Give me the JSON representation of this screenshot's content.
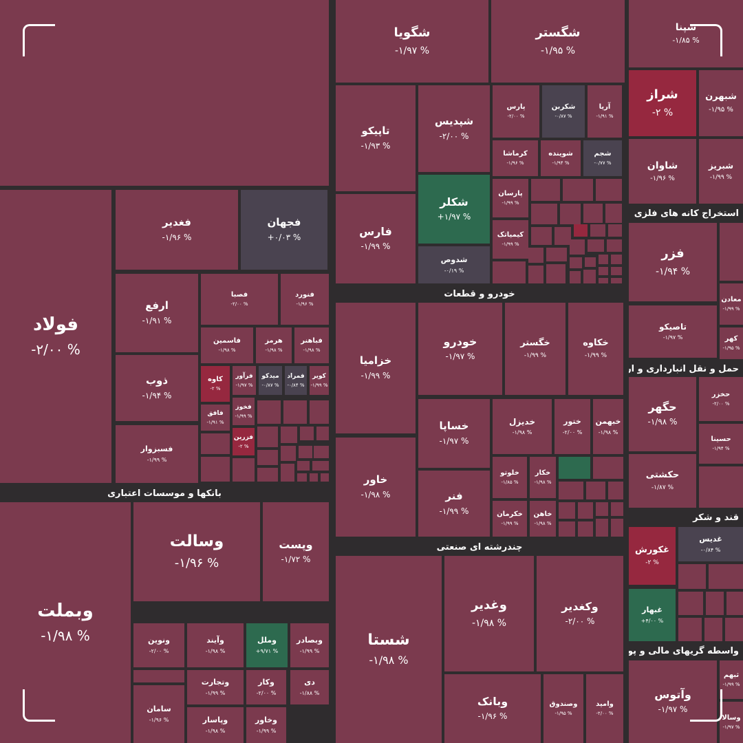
{
  "colors": {
    "background": "#2f2c2e",
    "down": "#7b3a4e",
    "down_strong": "#96283f",
    "neutral": "#4a4350",
    "up": "#2d6a4f"
  },
  "chart_data": {
    "type": "treemap",
    "value_format": "percent change",
    "groups": [
      {
        "name": "بانکها و موسسات اعتباری"
      },
      {
        "name": "خودرو و قطعات"
      },
      {
        "name": "چندرشته ای صنعتی"
      },
      {
        "name": "استخراج کانه های فلزی"
      },
      {
        "name": "حمل و نقل انبارداری و ارتباطات"
      },
      {
        "name": "قند و شکر"
      },
      {
        "name": "واسطه گریهای مالی و پولی"
      }
    ],
    "tiles": [
      {
        "name": "فولاد",
        "label": "-۲/۰۰ %",
        "value": -2.0
      },
      {
        "name": "فغدیر",
        "label": "-۱/۹۶ %",
        "value": -1.96
      },
      {
        "name": "فجهان",
        "label": "+۰/۰۳ %",
        "value": 0.03
      },
      {
        "name": "ارفع",
        "label": "-۱/۹۱ %",
        "value": -1.91
      },
      {
        "name": "ذوب",
        "label": "-۱/۹۴ %",
        "value": -1.94
      },
      {
        "name": "فسبزوار",
        "label": "-۱/۹۹ %",
        "value": -1.99
      },
      {
        "name": "فصبا",
        "label": "-۲/۰۰ %",
        "value": -2.0
      },
      {
        "name": "فنورد",
        "label": "-۱/۹۶ %",
        "value": -1.96
      },
      {
        "name": "فاسمین",
        "label": "-۱/۹۸ %",
        "value": -1.98
      },
      {
        "name": "هرمز",
        "label": "-۱/۹۸ %",
        "value": -1.98
      },
      {
        "name": "فباهنر",
        "label": "-۱/۹۸ %",
        "value": -1.98
      },
      {
        "name": "کاوه",
        "label": "-۲ %",
        "value": -2.0
      },
      {
        "name": "فرآور",
        "label": "-۱/۹۷ %",
        "value": -1.97
      },
      {
        "name": "میدکو",
        "label": "-۰/۸۷ %",
        "value": -0.87
      },
      {
        "name": "فمراد",
        "label": "-۰/۸۴ %",
        "value": -0.84
      },
      {
        "name": "کویر",
        "label": "-۱/۹۹ %",
        "value": -1.99
      },
      {
        "name": "فافق",
        "label": "-۱/۹۱ %",
        "value": -1.91
      },
      {
        "name": "فخوز",
        "label": "-۱/۹۹ %",
        "value": -1.99
      },
      {
        "name": "فزرین",
        "label": "-۲ %",
        "value": -2.0
      },
      {
        "name": "وبملت",
        "label": "-۱/۹۸ %",
        "value": -1.98
      },
      {
        "name": "وسالت",
        "label": "-۱/۹۶ %",
        "value": -1.96
      },
      {
        "name": "وپست",
        "label": "-۱/۷۲ %",
        "value": -1.72
      },
      {
        "name": "ونوین",
        "label": "-۲/۰۰ %",
        "value": -2.0
      },
      {
        "name": "وآیند",
        "label": "-۱/۹۸ %",
        "value": -1.98
      },
      {
        "name": "وملل",
        "label": "+۹/۷۱ %",
        "value": 9.71
      },
      {
        "name": "وبصادر",
        "label": "-۱/۹۹ %",
        "value": -1.99
      },
      {
        "name": "وتجارت",
        "label": "-۱/۹۹ %",
        "value": -1.99
      },
      {
        "name": "وکار",
        "label": "-۲/۰۰ %",
        "value": -2.0
      },
      {
        "name": "دی",
        "label": "-۱/۸۸ %",
        "value": -1.88
      },
      {
        "name": "سامان",
        "label": "-۱/۹۶ %",
        "value": -1.96
      },
      {
        "name": "وپاسار",
        "label": "-۱/۹۸ %",
        "value": -1.98
      },
      {
        "name": "وخاور",
        "label": "-۱/۹۹ %",
        "value": -1.99
      },
      {
        "name": "شگویا",
        "label": "-۱/۹۷ %",
        "value": -1.97
      },
      {
        "name": "شگستر",
        "label": "-۱/۹۵ %",
        "value": -1.95
      },
      {
        "name": "شپنا",
        "label": "-۱/۸۵ %",
        "value": -1.85
      },
      {
        "name": "تاپیکو",
        "label": "-۱/۹۳ %",
        "value": -1.93
      },
      {
        "name": "شپدیس",
        "label": "-۲/۰۰ %",
        "value": -2.0
      },
      {
        "name": "پارس",
        "label": "-۲/۰۰ %",
        "value": -2.0
      },
      {
        "name": "شکربن",
        "label": "-۰/۸۷ %",
        "value": -0.87
      },
      {
        "name": "آریا",
        "label": "-۱/۹۱ %",
        "value": -1.91
      },
      {
        "name": "کرماشا",
        "label": "-۱/۹۶ %",
        "value": -1.96
      },
      {
        "name": "شوینده",
        "label": "-۱/۹۴ %",
        "value": -1.94
      },
      {
        "name": "شجم",
        "label": "-۰/۷۷ %",
        "value": -0.77
      },
      {
        "name": "فارس",
        "label": "-۱/۹۹ %",
        "value": -1.99
      },
      {
        "name": "شکلر",
        "label": "+۱/۹۷ %",
        "value": 1.97
      },
      {
        "name": "پارسان",
        "label": "-۱/۹۹ %",
        "value": -1.99
      },
      {
        "name": "کیمیاتک",
        "label": "-۱/۹۹ %",
        "value": -1.99
      },
      {
        "name": "شدوص",
        "label": "-۰/۱۹ %",
        "value": -0.19
      },
      {
        "name": "شراز",
        "label": "-۲ %",
        "value": -2.0
      },
      {
        "name": "شبهرن",
        "label": "-۱/۹۵ %",
        "value": -1.95
      },
      {
        "name": "شاوان",
        "label": "-۱/۹۶ %",
        "value": -1.96
      },
      {
        "name": "شبریز",
        "label": "-۱/۹۹ %",
        "value": -1.99
      },
      {
        "name": "خودرو",
        "label": "-۱/۹۷ %",
        "value": -1.97
      },
      {
        "name": "خگستر",
        "label": "-۱/۹۹ %",
        "value": -1.99
      },
      {
        "name": "خکاوه",
        "label": "-۱/۹۹ %",
        "value": -1.99
      },
      {
        "name": "خزامیا",
        "label": "-۱/۹۹ %",
        "value": -1.99
      },
      {
        "name": "خساپا",
        "label": "-۱/۹۷ %",
        "value": -1.97
      },
      {
        "name": "خدیزل",
        "label": "-۱/۹۸ %",
        "value": -1.98
      },
      {
        "name": "ختور",
        "label": "-۲/۰۰ %",
        "value": -2.0
      },
      {
        "name": "خبهمن",
        "label": "-۱/۹۸ %",
        "value": -1.98
      },
      {
        "name": "خاور",
        "label": "-۱/۹۸ %",
        "value": -1.98
      },
      {
        "name": "خلوتو",
        "label": "-۱/۸۵ %",
        "value": -1.85
      },
      {
        "name": "خکار",
        "label": "-۱/۹۸ %",
        "value": -1.98
      },
      {
        "name": "فنر",
        "label": "-۱/۹۹ %",
        "value": -1.99
      },
      {
        "name": "خکرمان",
        "label": "-۱/۹۹ %",
        "value": -1.99
      },
      {
        "name": "خاهن",
        "label": "-۱/۹۸ %",
        "value": -1.98
      },
      {
        "name": "شستا",
        "label": "-۱/۹۸ %",
        "value": -1.98
      },
      {
        "name": "وغدیر",
        "label": "-۱/۹۸ %",
        "value": -1.98
      },
      {
        "name": "وکغدیر",
        "label": "-۲/۰۰ %",
        "value": -2.0
      },
      {
        "name": "وبانک",
        "label": "-۱/۹۶ %",
        "value": -1.96
      },
      {
        "name": "وصندوق",
        "label": "-۱/۹۵ %",
        "value": -1.95
      },
      {
        "name": "وامید",
        "label": "-۲/۰۰ %",
        "value": -2.0
      },
      {
        "name": "فزر",
        "label": "-۱/۹۴ %",
        "value": -1.94
      },
      {
        "name": "تاصیکو",
        "label": "-۱/۹۷ %",
        "value": -1.97
      },
      {
        "name": "معادن",
        "label": "-۱/۹۹ %",
        "value": -1.99
      },
      {
        "name": "کهر",
        "label": "-۱/۹۵ %",
        "value": -1.95
      },
      {
        "name": "حگهر",
        "label": "-۱/۹۸ %",
        "value": -1.98
      },
      {
        "name": "حکشتی",
        "label": "-۱/۸۷ %",
        "value": -1.87
      },
      {
        "name": "حخزر",
        "label": "-۲/۰۰ %",
        "value": -2.0
      },
      {
        "name": "حسینا",
        "label": "-۱/۹۴ %",
        "value": -1.94
      },
      {
        "name": "غکورش",
        "label": "-۲ %",
        "value": -2.0
      },
      {
        "name": "غدیس",
        "label": "-۰/۸۴ %",
        "value": -0.84
      },
      {
        "name": "غبهار",
        "label": "+۴/۰۰ %",
        "value": 4.0
      },
      {
        "name": "وآتوس",
        "label": "-۱/۹۷ %",
        "value": -1.97
      },
      {
        "name": "وسالا",
        "label": "-۱/۹۷ %",
        "value": -1.97
      },
      {
        "name": "ثبهم",
        "label": "-۱/۹۹ %",
        "value": -1.99
      }
    ]
  }
}
